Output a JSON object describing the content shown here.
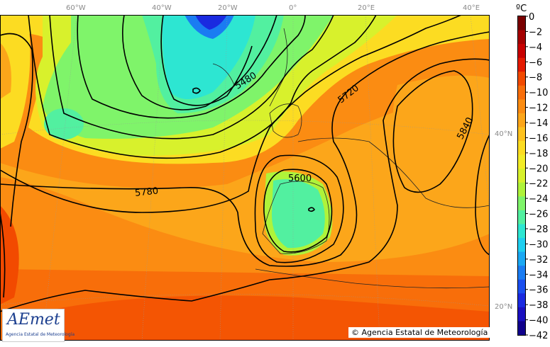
{
  "map": {
    "lon_labels": [
      "60°W",
      "40°W",
      "20°W",
      "0°",
      "20°E",
      "40°E"
    ],
    "lat_labels": [
      "40°N",
      "20°N"
    ],
    "contour_labels": [
      "5480",
      "5720",
      "5840",
      "5600",
      "5780"
    ]
  },
  "colorbar": {
    "unit": "ºC",
    "ticks": [
      "0",
      "−2",
      "−4",
      "−6",
      "−8",
      "−10",
      "−12",
      "−14",
      "−16",
      "−18",
      "−20",
      "−22",
      "−24",
      "−26",
      "−28",
      "−30",
      "−32",
      "−34",
      "−36",
      "−38",
      "−40",
      "−42"
    ],
    "colors": [
      "#7a0000",
      "#a50000",
      "#c80000",
      "#e41a00",
      "#f24a00",
      "#f86e0a",
      "#fb8c12",
      "#fca61a",
      "#fdc21f",
      "#fcdc22",
      "#f2ec27",
      "#d8f12c",
      "#aff33a",
      "#7ff46a",
      "#52f0a0",
      "#2de6d2",
      "#1fcff0",
      "#1aa8f3",
      "#1a7cf2",
      "#1a4fef",
      "#1a2ae0",
      "#1a10c0",
      "#10008c"
    ]
  },
  "logo": {
    "brand": "AEmet",
    "subtitle": "Agencia Estatal de Meteorología"
  },
  "copyright": "© Agencia Estatal de Meteorología"
}
